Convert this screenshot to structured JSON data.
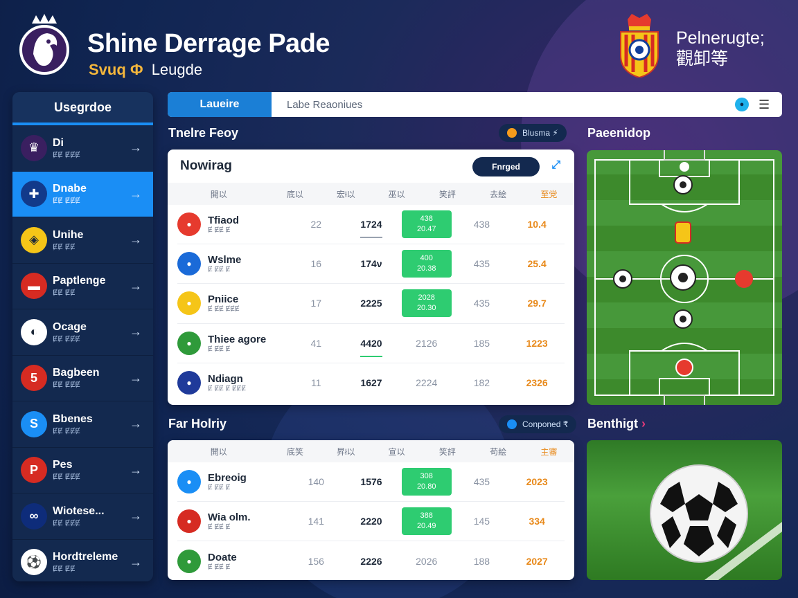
{
  "header": {
    "title": "Shine Derrage Pade",
    "subtitle_accent": "Svuq Ф",
    "subtitle": "Leugde",
    "right_line1": "Pelnerugte;",
    "right_line2": "觀卸等"
  },
  "sidebar": {
    "heading": "Usegrdoe",
    "items": [
      {
        "label": "Di",
        "sub": "ɆɆ ɆɆɆ",
        "icon": "lion-icon"
      },
      {
        "label": "Dnabe",
        "sub": "ɆɆ ɆɆɆ",
        "icon": "uk-flag-icon"
      },
      {
        "label": "Unihe",
        "sub": "ɆɆ ɆɆ",
        "icon": "crest-icon"
      },
      {
        "label": "Paptlenge",
        "sub": "ɆɆ ɆɆ",
        "icon": "flag-icon"
      },
      {
        "label": "Ocage",
        "sub": "ɆɆ ɆɆɆ",
        "icon": "flag-icon"
      },
      {
        "label": "Bagbeen",
        "sub": "ɆɆ ɆɆɆ",
        "icon": "club-icon"
      },
      {
        "label": "Bbenes",
        "sub": "ɆɆ ɆɆɆ",
        "icon": "club-icon"
      },
      {
        "label": "Pes",
        "sub": "ɆɆ ɆɆɆ",
        "icon": "club-icon"
      },
      {
        "label": "Wiotese...",
        "sub": "ɆɆ ɆɆɆ",
        "icon": "club-icon"
      },
      {
        "label": "Hordtreleme",
        "sub": "ɆɆ ɆɆ",
        "icon": "ball-icon"
      }
    ]
  },
  "topbar": {
    "tab": "Laueire",
    "placeholder": "Labe Reaoniues"
  },
  "section1": {
    "title": "Tnelre Feoy",
    "pill": "Blusma ⚡",
    "panel_title": "Nowirag",
    "panel_button": "Fnrged",
    "columns": [
      "開以",
      "底以",
      "宏ł以",
      "巫以",
      "笑評",
      "去絵",
      "至党"
    ],
    "rows": [
      {
        "name": "Tfiaod",
        "sub": "Ɇ ɆɆ Ɇ",
        "c1": "22",
        "c2": "1724",
        "badge": [
          "438",
          "20.47"
        ],
        "c4": "438",
        "c5": "10.4"
      },
      {
        "name": "Wslme",
        "sub": "Ɇ ɆɆ Ɇ",
        "c1": "16",
        "c2": "174ν",
        "badge": [
          "400",
          "20.38"
        ],
        "c4": "435",
        "c5": "25.4"
      },
      {
        "name": "Pniice",
        "sub": "Ɇ ɆɆ ɆɆɆ",
        "c1": "17",
        "c2": "2225",
        "badge": [
          "2028",
          "20.30"
        ],
        "c4": "435",
        "c5": "29.7"
      },
      {
        "name": "Thiee agore",
        "sub": "Ɇ ɆɆ Ɇ",
        "c1": "41",
        "c2": "4420",
        "plain": "2126",
        "c4": "185",
        "c5": "1223"
      },
      {
        "name": "Ndiagn",
        "sub": "Ɇ ɆɆ Ɇ ɆɆɆ",
        "c1": "11",
        "c2": "1627",
        "plain": "2224",
        "c4": "182",
        "c5": "2326"
      }
    ]
  },
  "section2": {
    "title": "Far Holriy",
    "pill": "Conponed ₹",
    "columns": [
      "開以",
      "底笑",
      "昇ł以",
      "宣以",
      "笑評",
      "苟絵",
      "主審"
    ],
    "rows": [
      {
        "name": "Ebreoig",
        "sub": "Ɇ ɆɆ Ɇ",
        "c1": "140",
        "c2": "1576",
        "badge": [
          "308",
          "20.80"
        ],
        "c4": "435",
        "c5": "2023"
      },
      {
        "name": "Wia olm.",
        "sub": "Ɇ ɆɆ Ɇ",
        "c1": "141",
        "c2": "2220",
        "badge": [
          "388",
          "20.49"
        ],
        "c4": "145",
        "c5": "334"
      },
      {
        "name": "Doate",
        "sub": "Ɇ ɆɆ Ɇ",
        "c1": "156",
        "c2": "2226",
        "plain": "2026",
        "c4": "188",
        "c5": "2027"
      }
    ]
  },
  "pitch": {
    "title": "Paeenidop"
  },
  "highlight": {
    "title": "Benthigt"
  },
  "colors": {
    "accent": "#1a8ef5",
    "green": "#2ecc71",
    "orange": "#e8891a",
    "navy": "#13294f"
  }
}
